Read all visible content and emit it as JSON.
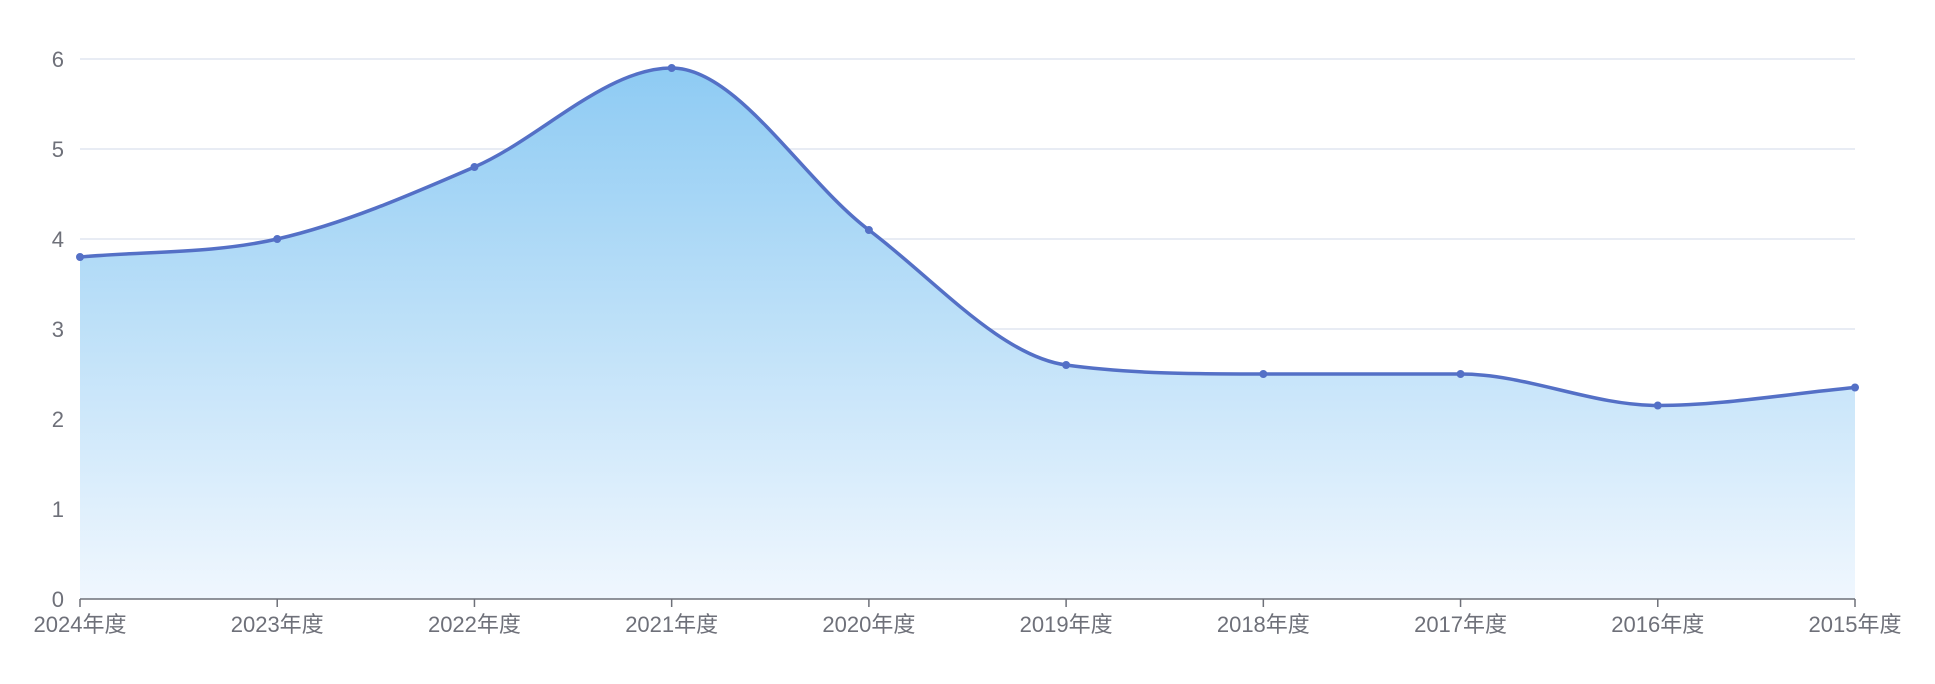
{
  "chart_data": {
    "type": "area",
    "title": "",
    "xlabel": "",
    "ylabel": "",
    "categories": [
      "2024年度",
      "2023年度",
      "2022年度",
      "2021年度",
      "2020年度",
      "2019年度",
      "2018年度",
      "2017年度",
      "2016年度",
      "2015年度"
    ],
    "series": [
      {
        "values": [
          3.8,
          4.0,
          4.8,
          5.9,
          4.1,
          2.6,
          2.5,
          2.5,
          2.15,
          2.35
        ]
      }
    ],
    "ylim": [
      0,
      6
    ],
    "yticks": [
      "0",
      "1",
      "2",
      "3",
      "4",
      "5",
      "6"
    ],
    "grid": true,
    "smooth": true,
    "colors": {
      "line": "#5470c6",
      "area_top": "#8ecbf3",
      "area_bottom": "#f0f7fe",
      "grid": "#e0e6f1",
      "axis": "#6e7079"
    }
  }
}
